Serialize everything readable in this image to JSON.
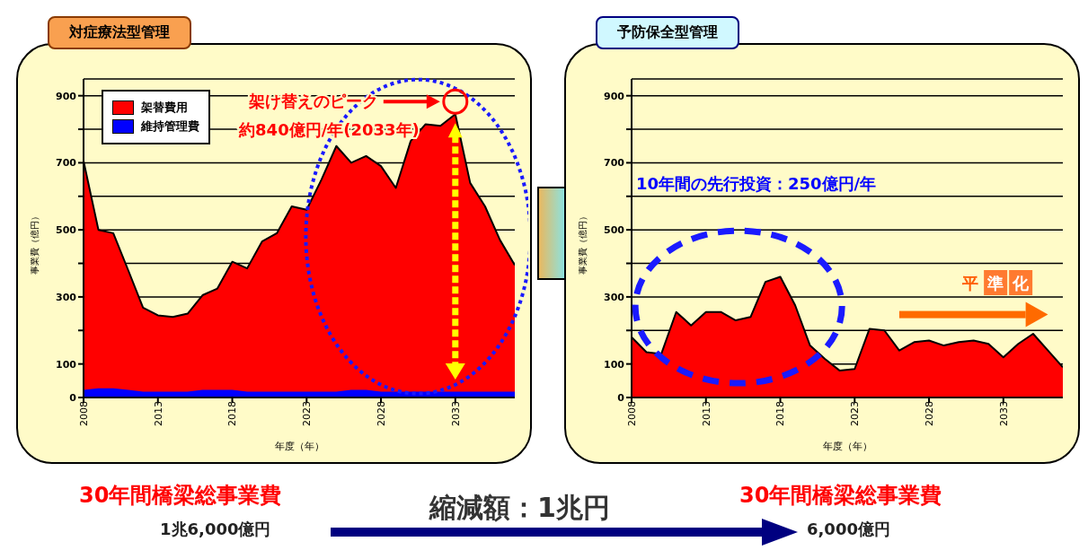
{
  "chart_data": [
    {
      "type": "area",
      "title": "対症療法型管理",
      "xlabel": "年度（年）",
      "ylabel": "事業費（億円）",
      "x": [
        2008,
        2009,
        2010,
        2011,
        2012,
        2013,
        2014,
        2015,
        2016,
        2017,
        2018,
        2019,
        2020,
        2021,
        2022,
        2023,
        2024,
        2025,
        2026,
        2027,
        2028,
        2029,
        2030,
        2031,
        2032,
        2033,
        2034,
        2035,
        2036,
        2037
      ],
      "series": [
        {
          "name": "架替費用",
          "color": "#ff0000",
          "values": [
            705,
            500,
            490,
            380,
            268,
            245,
            240,
            250,
            305,
            325,
            405,
            385,
            465,
            490,
            570,
            560,
            650,
            750,
            700,
            720,
            690,
            625,
            765,
            815,
            810,
            845,
            640,
            570,
            470,
            395
          ]
        },
        {
          "name": "維持管理費",
          "color": "#0000ff",
          "values": [
            20,
            25,
            25,
            20,
            15,
            15,
            15,
            15,
            20,
            20,
            20,
            15,
            15,
            15,
            15,
            15,
            15,
            15,
            20,
            20,
            15,
            15,
            15,
            15,
            15,
            15,
            15,
            15,
            15,
            15
          ]
        }
      ],
      "xlim": [
        2008,
        2037
      ],
      "xticks": [
        2008,
        2013,
        2018,
        2023,
        2028,
        2033
      ],
      "ylim": [
        0,
        950
      ],
      "yticks": [
        0,
        100,
        {
          "value": 200,
          "label": null
        },
        300,
        {
          "value": 400,
          "label": null
        },
        500,
        {
          "value": 600,
          "label": null
        },
        700,
        {
          "value": 800,
          "label": null
        },
        900
      ],
      "grid": "y",
      "legend": "top left",
      "annotations": [
        "架け替えのピーク",
        "約840億円/年(2033年)"
      ]
    },
    {
      "type": "area",
      "title": "予防保全型管理",
      "xlabel": "年度（年）",
      "ylabel": "事業費（億円）",
      "x": [
        2008,
        2009,
        2010,
        2011,
        2012,
        2013,
        2014,
        2015,
        2016,
        2017,
        2018,
        2019,
        2020,
        2021,
        2022,
        2023,
        2024,
        2025,
        2026,
        2027,
        2028,
        2029,
        2030,
        2031,
        2032,
        2033,
        2034,
        2035,
        2036,
        2037
      ],
      "series": [
        {
          "color": "#ff0000",
          "values": [
            180,
            135,
            130,
            255,
            215,
            255,
            255,
            230,
            240,
            345,
            360,
            275,
            155,
            115,
            80,
            85,
            205,
            200,
            140,
            165,
            170,
            155,
            165,
            170,
            160,
            120,
            160,
            190,
            140,
            90
          ]
        }
      ],
      "xlim": [
        2008,
        2037
      ],
      "xticks": [
        2008,
        2013,
        2018,
        2023,
        2028,
        2033
      ],
      "ylim": [
        0,
        950
      ],
      "yticks": [
        0,
        100,
        {
          "value": 200,
          "label": null
        },
        300,
        {
          "value": 400,
          "label": null
        },
        500,
        {
          "value": 600,
          "label": null
        },
        700,
        {
          "value": 800,
          "label": null
        },
        900
      ],
      "grid": "y",
      "annotations": [
        "10年間の先行投資：250億円/年",
        "平準化"
      ]
    },
    {
      "type": "other",
      "annotations": [
        "30年間橋梁総事業費",
        "1兆6,000億円",
        "縮減額：1兆円",
        "30年間橋梁総事業費",
        "6,000億円"
      ]
    }
  ]
}
